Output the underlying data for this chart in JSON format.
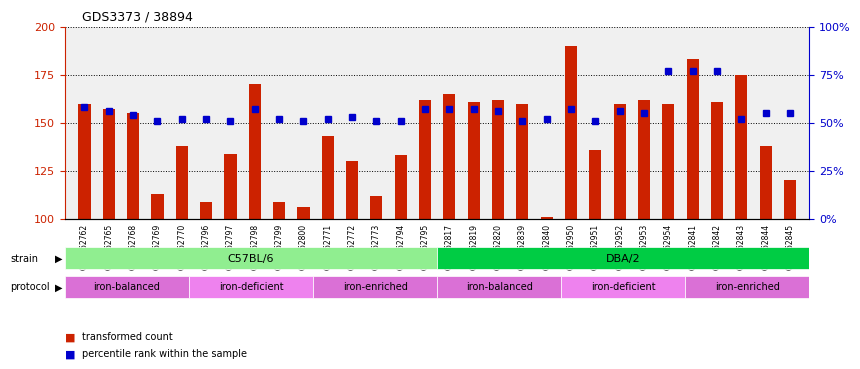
{
  "title": "GDS3373 / 38894",
  "samples": [
    "GSM262762",
    "GSM262765",
    "GSM262768",
    "GSM262769",
    "GSM262770",
    "GSM262796",
    "GSM262797",
    "GSM262798",
    "GSM262799",
    "GSM262800",
    "GSM262771",
    "GSM262772",
    "GSM262773",
    "GSM262794",
    "GSM262795",
    "GSM262817",
    "GSM262819",
    "GSM262820",
    "GSM262839",
    "GSM262840",
    "GSM262950",
    "GSM262951",
    "GSM262952",
    "GSM262953",
    "GSM262954",
    "GSM262841",
    "GSM262842",
    "GSM262843",
    "GSM262844",
    "GSM262845"
  ],
  "bar_values": [
    160,
    157,
    155,
    113,
    138,
    109,
    134,
    170,
    109,
    106,
    143,
    130,
    112,
    133,
    162,
    165,
    161,
    162,
    160,
    101,
    190,
    136,
    160,
    162,
    160,
    183,
    161,
    175,
    138,
    120
  ],
  "percentile_values": [
    58,
    56,
    54,
    51,
    52,
    52,
    51,
    57,
    52,
    51,
    52,
    53,
    51,
    51,
    57,
    57,
    57,
    56,
    51,
    52,
    57,
    51,
    56,
    55,
    77,
    77,
    77,
    52,
    55,
    55
  ],
  "strain_groups": [
    {
      "label": "C57BL/6",
      "start": 0,
      "end": 15,
      "color": "#90ee90"
    },
    {
      "label": "DBA/2",
      "start": 15,
      "end": 30,
      "color": "#00cc44"
    }
  ],
  "protocol_groups": [
    {
      "label": "iron-balanced",
      "start": 0,
      "end": 5,
      "color": "#da70d6"
    },
    {
      "label": "iron-deficient",
      "start": 5,
      "end": 10,
      "color": "#ee82ee"
    },
    {
      "label": "iron-enriched",
      "start": 10,
      "end": 15,
      "color": "#da70d6"
    },
    {
      "label": "iron-balanced",
      "start": 15,
      "end": 20,
      "color": "#da70d6"
    },
    {
      "label": "iron-deficient",
      "start": 20,
      "end": 25,
      "color": "#ee82ee"
    },
    {
      "label": "iron-enriched",
      "start": 25,
      "end": 30,
      "color": "#da70d6"
    }
  ],
  "ylim_left": [
    100,
    200
  ],
  "ylim_right": [
    0,
    100
  ],
  "yticks_left": [
    100,
    125,
    150,
    175,
    200
  ],
  "yticks_right": [
    0,
    25,
    50,
    75,
    100
  ],
  "bar_color": "#cc2200",
  "percentile_color": "#0000cc",
  "background_color": "#f0f0f0",
  "grid_color": "black",
  "legend_items": [
    "transformed count",
    "percentile rank within the sample"
  ]
}
